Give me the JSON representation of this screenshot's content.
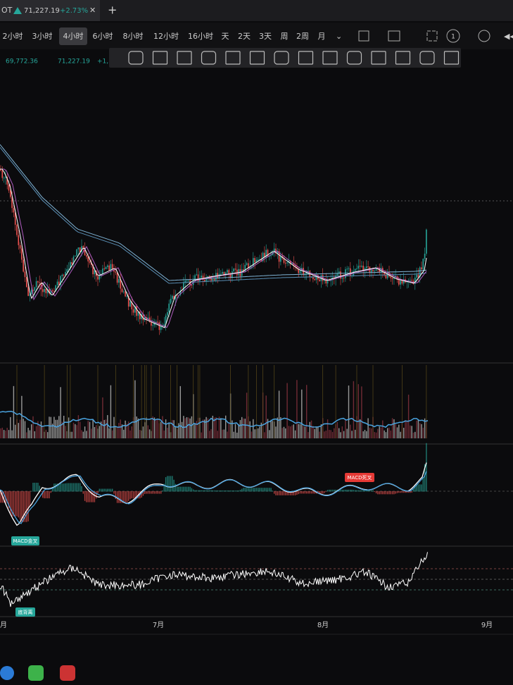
{
  "header": {
    "symbol": "OT",
    "price": "71,227.19",
    "change": "+2.73%",
    "add_tab": "+"
  },
  "toolbar": {
    "intervals": [
      "2小时",
      "3小时",
      "4小时",
      "6小时",
      "8小时",
      "12小时",
      "16小时",
      "天",
      "2天",
      "3天",
      "周",
      "2周",
      "月"
    ],
    "active_interval": "4小时",
    "badge": "1"
  },
  "legend": {
    "open": "69,772.36",
    "close": "71,227.19",
    "change": "+1,"
  },
  "annotations": {
    "macd_dead_cross": "MACD死叉",
    "macd_golden_cross": "MACD金叉",
    "rsi_bottom": "底背离"
  },
  "x_axis": {
    "labels": [
      "月",
      "7月",
      "8月",
      "9月"
    ]
  }
}
